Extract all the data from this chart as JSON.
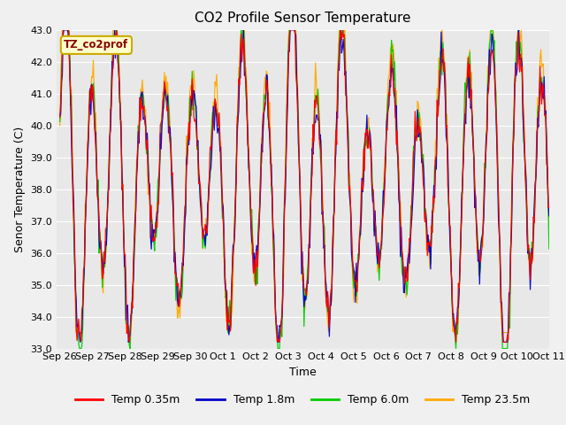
{
  "title": "CO2 Profile Sensor Temperature",
  "ylabel": "Senor Temperature (C)",
  "xlabel": "Time",
  "annotation": "TZ_co2prof",
  "ylim": [
    33.0,
    43.0
  ],
  "yticks": [
    33.0,
    34.0,
    35.0,
    36.0,
    37.0,
    38.0,
    39.0,
    40.0,
    41.0,
    42.0,
    43.0
  ],
  "xtick_labels": [
    "Sep 26",
    "Sep 27",
    "Sep 28",
    "Sep 29",
    "Sep 30",
    "Oct 1",
    "Oct 2",
    "Oct 3",
    "Oct 4",
    "Oct 5",
    "Oct 6",
    "Oct 7",
    "Oct 8",
    "Oct 9",
    "Oct 10",
    "Oct 11"
  ],
  "series_labels": [
    "Temp 0.35m",
    "Temp 1.8m",
    "Temp 6.0m",
    "Temp 23.5m"
  ],
  "series_colors": [
    "#ff0000",
    "#0000cc",
    "#00cc00",
    "#ffaa00"
  ],
  "background_color": "#e8e8e8",
  "fig_background": "#f0f0f0",
  "grid_color": "#ffffff",
  "title_fontsize": 11,
  "axis_fontsize": 9,
  "tick_fontsize": 8,
  "legend_fontsize": 9,
  "annotation_color": "#8b0000",
  "annotation_bg": "#ffffcc",
  "annotation_edge": "#ccaa00"
}
